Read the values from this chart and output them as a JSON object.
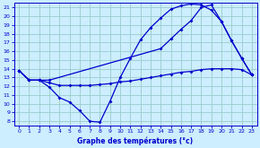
{
  "xlabel": "Graphe des températures (°c)",
  "bg_color": "#cceeff",
  "grid_color": "#99cccc",
  "line_color": "#0000cc",
  "xlim": [
    -0.5,
    23.5
  ],
  "ylim": [
    7.5,
    21.5
  ],
  "xticks": [
    0,
    1,
    2,
    3,
    4,
    5,
    6,
    7,
    8,
    9,
    10,
    11,
    12,
    13,
    14,
    15,
    16,
    17,
    18,
    19,
    20,
    21,
    22,
    23
  ],
  "yticks": [
    8,
    9,
    10,
    11,
    12,
    13,
    14,
    15,
    16,
    17,
    18,
    19,
    20,
    21
  ],
  "line1_x": [
    0,
    1,
    2,
    3,
    4,
    5,
    6,
    7,
    8,
    9,
    10,
    11,
    12,
    13,
    14,
    15,
    16,
    17,
    18,
    19,
    20,
    21,
    22,
    23
  ],
  "line1_y": [
    13.8,
    12.7,
    12.7,
    11.9,
    10.7,
    10.2,
    9.2,
    8.0,
    7.9,
    10.3,
    13.0,
    15.2,
    17.3,
    18.7,
    19.8,
    20.8,
    21.2,
    21.4,
    21.3,
    20.7,
    19.4,
    17.2,
    15.2,
    13.3
  ],
  "line2_x": [
    0,
    1,
    2,
    3,
    14,
    15,
    16,
    17,
    18,
    19,
    20,
    21,
    22,
    23
  ],
  "line2_y": [
    13.8,
    12.7,
    12.7,
    12.7,
    16.3,
    17.4,
    18.5,
    19.5,
    21.0,
    21.3,
    19.4,
    17.2,
    15.2,
    13.3
  ],
  "line3_x": [
    0,
    1,
    2,
    3,
    4,
    5,
    6,
    7,
    8,
    9,
    10,
    11,
    12,
    13,
    14,
    15,
    16,
    17,
    18,
    19,
    20,
    21,
    22,
    23
  ],
  "line3_y": [
    13.8,
    12.7,
    12.7,
    12.4,
    12.1,
    12.1,
    12.1,
    12.1,
    12.2,
    12.3,
    12.5,
    12.6,
    12.8,
    13.0,
    13.2,
    13.4,
    13.6,
    13.7,
    13.9,
    14.0,
    14.0,
    14.0,
    13.9,
    13.3
  ]
}
